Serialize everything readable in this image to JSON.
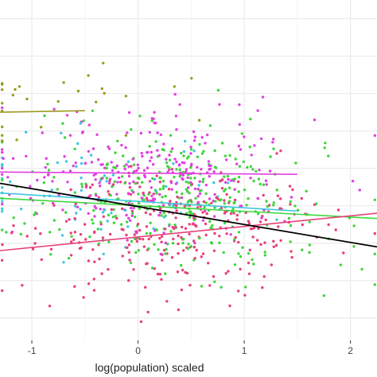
{
  "chart_data": {
    "type": "scatter",
    "title": "",
    "xlabel": "log(population) scaled",
    "ylabel": "",
    "xlim": [
      -1.3,
      2.25
    ],
    "ylim": [
      -2.05,
      2.5
    ],
    "x_ticks": [
      -1,
      0,
      1,
      2
    ],
    "x_tick_labels": [
      "-1",
      "0",
      "1",
      "2"
    ],
    "y_gridlines": [
      -1.75,
      -1.25,
      -0.75,
      -0.25,
      0.25,
      0.75,
      1.25,
      1.75,
      2.25
    ],
    "grid": true,
    "legend": "none",
    "colors": {
      "background": "#ffffff",
      "grid_major": "#ebebeb",
      "grid_minor": "#f4f4f4",
      "magenta": "#e040e0",
      "green": "#3ed63e",
      "pink": "#e8407a",
      "cyan": "#3ec8e0",
      "olive": "#9a9a20",
      "overall": "#000000"
    },
    "series": [
      {
        "color": "magenta",
        "fit": {
          "x": [
            -1.3,
            1.5
          ],
          "y": [
            0.2,
            0.17
          ]
        },
        "point_count": 260,
        "x_center": 0.1,
        "y_center": 0.22,
        "spread": 0.75
      },
      {
        "color": "green",
        "fit": {
          "x": [
            -1.3,
            2.25
          ],
          "y": [
            -0.15,
            -0.42
          ]
        },
        "point_count": 330,
        "x_center": 0.35,
        "y_center": -0.05,
        "spread": 0.85
      },
      {
        "color": "pink",
        "fit": {
          "x": [
            -1.3,
            2.25
          ],
          "y": [
            -0.85,
            -0.35
          ]
        },
        "point_count": 290,
        "x_center": 0.35,
        "y_center": -0.55,
        "spread": 0.72
      },
      {
        "color": "cyan",
        "fit": {
          "x": [
            -1.3,
            1.5
          ],
          "y": [
            -0.08,
            -0.32
          ]
        },
        "point_count": 70,
        "x_center": -0.35,
        "y_center": 0.0,
        "spread": 0.75
      },
      {
        "color": "olive",
        "fit": {
          "x": [
            -1.3,
            -0.5
          ],
          "y": [
            1.0,
            1.02
          ]
        },
        "point_count": 28,
        "x_center": -0.95,
        "y_center": 1.5,
        "spread": 0.5
      }
    ],
    "overall_fit": {
      "x": [
        -1.3,
        2.25
      ],
      "y": [
        0.05,
        -0.8
      ]
    }
  }
}
